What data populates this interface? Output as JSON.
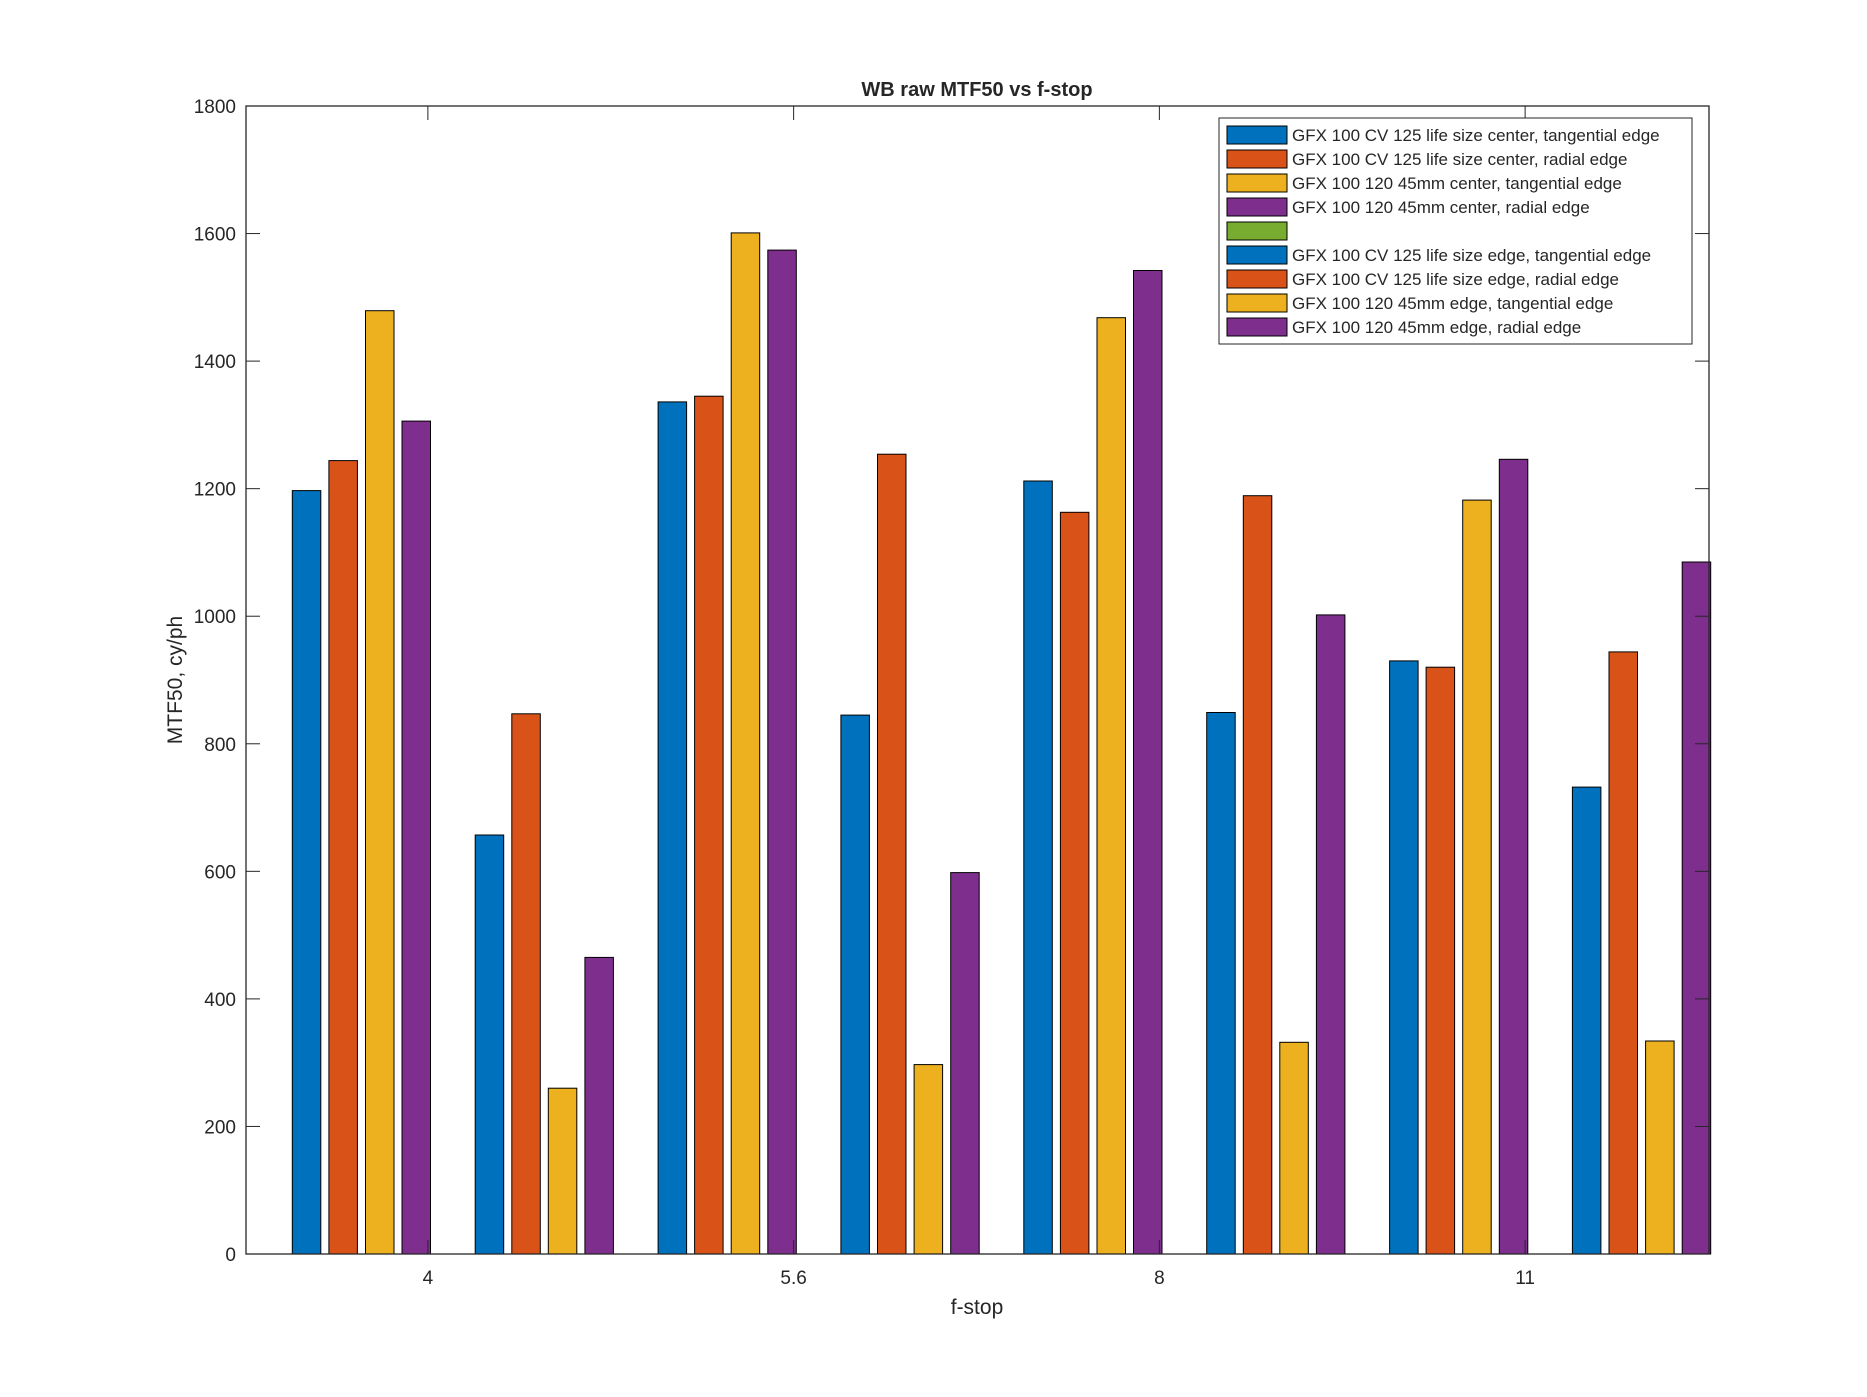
{
  "chart_data": {
    "type": "bar",
    "title": "WB raw MTF50 vs f-stop",
    "xlabel": "f-stop",
    "ylabel": "MTF50, cy/ph",
    "categories": [
      "4",
      "5.6",
      "8",
      "11"
    ],
    "ylim": [
      0,
      1800
    ],
    "yticks": [
      "0",
      "200",
      "400",
      "600",
      "800",
      "1000",
      "1200",
      "1400",
      "1600",
      "1800"
    ],
    "grid": false,
    "legend_position": "top-right",
    "series": [
      {
        "name": "GFX 100 CV 125 life size center, tangential edge",
        "color": "#0072BD",
        "values": [
          1197,
          1336,
          1212,
          930
        ]
      },
      {
        "name": "GFX 100 CV 125 life size center, radial edge",
        "color": "#D95319",
        "values": [
          1244,
          1345,
          1163,
          920
        ]
      },
      {
        "name": "GFX 100 120 45mm center, tangential edge",
        "color": "#EDB120",
        "values": [
          1479,
          1601,
          1468,
          1182
        ]
      },
      {
        "name": "GFX 100 120 45mm center, radial edge",
        "color": "#7E2F8E",
        "values": [
          1306,
          1574,
          1542,
          1246
        ]
      },
      {
        "name": "",
        "color": "#77AC30",
        "values": [
          0,
          0,
          0,
          0
        ]
      },
      {
        "name": "GFX 100 CV 125 life size edge, tangential edge",
        "color": "#0072BD",
        "values": [
          657,
          845,
          849,
          732
        ]
      },
      {
        "name": "GFX 100 CV 125 life size edge, radial edge",
        "color": "#D95319",
        "values": [
          847,
          1254,
          1189,
          944
        ]
      },
      {
        "name": "GFX 100 120 45mm edge, tangential edge",
        "color": "#EDB120",
        "values": [
          260,
          297,
          332,
          334
        ]
      },
      {
        "name": "GFX 100 120 45mm edge, radial edge",
        "color": "#7E2F8E",
        "values": [
          465,
          598,
          1002,
          1085
        ]
      }
    ]
  }
}
